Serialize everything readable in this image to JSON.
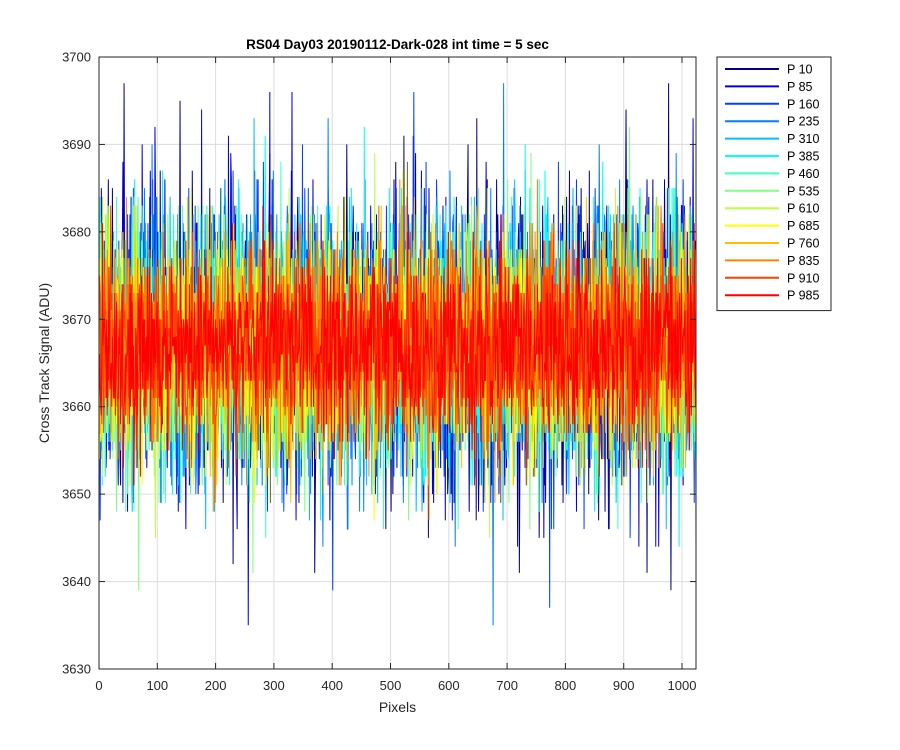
{
  "chart_data": {
    "type": "line",
    "title": "RS04 Day03 20190112-Dark-028 int time = 5 sec",
    "xlabel": "Pixels",
    "ylabel": "Cross Track Signal (ADU)",
    "xlim": [
      0,
      1024
    ],
    "ylim": [
      3630,
      3700
    ],
    "xticks": [
      0,
      100,
      200,
      300,
      400,
      500,
      600,
      700,
      800,
      900,
      1000
    ],
    "yticks": [
      3630,
      3640,
      3650,
      3660,
      3670,
      3680,
      3690,
      3700
    ],
    "grid": true,
    "legend_position": "outside-top-right",
    "noise_model": {
      "mean": 3667,
      "std_start": 8.5,
      "std_end": 5.5,
      "min": 3634,
      "max": 3699
    },
    "series": [
      {
        "name": "P 10",
        "color": "#00008f"
      },
      {
        "name": "P 85",
        "color": "#0000e0"
      },
      {
        "name": "P 160",
        "color": "#0040ff"
      },
      {
        "name": "P 235",
        "color": "#0080ff"
      },
      {
        "name": "P 310",
        "color": "#00bfff"
      },
      {
        "name": "P 385",
        "color": "#00ffff"
      },
      {
        "name": "P 460",
        "color": "#40ffbf"
      },
      {
        "name": "P 535",
        "color": "#80ff80"
      },
      {
        "name": "P 610",
        "color": "#bfff40"
      },
      {
        "name": "P 685",
        "color": "#ffff00"
      },
      {
        "name": "P 760",
        "color": "#ffbf00"
      },
      {
        "name": "P 835",
        "color": "#ff8000"
      },
      {
        "name": "P 910",
        "color": "#ff4000"
      },
      {
        "name": "P 985",
        "color": "#ff0000"
      }
    ]
  }
}
